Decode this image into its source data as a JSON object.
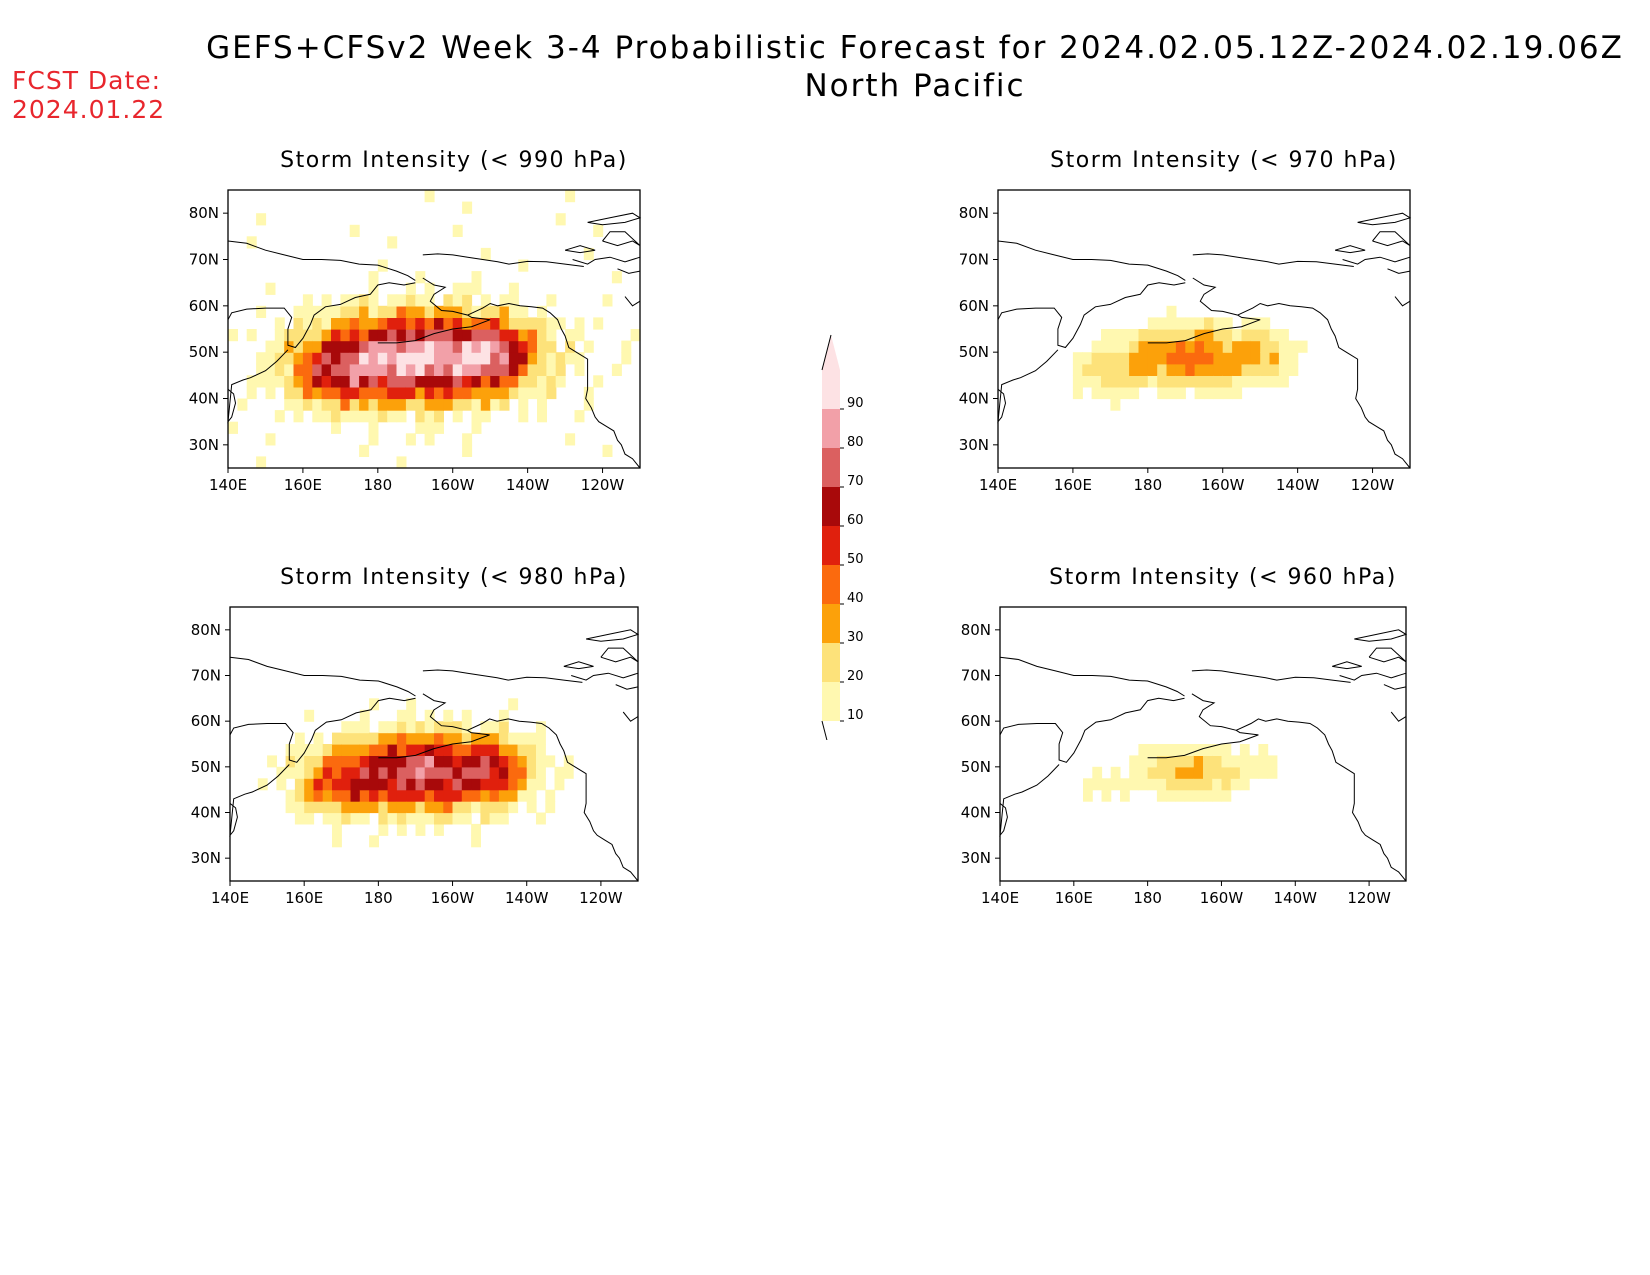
{
  "title": {
    "line1": "GEFS+CFSv2 Week 3-4 Probabilistic Forecast for 2024.02.05.12Z-2024.02.19.06Z",
    "line2": "North Pacific"
  },
  "fcst": {
    "label": "FCST Date:",
    "date": "2024.01.22"
  },
  "axes": {
    "lon_ticks": [
      "140E",
      "160E",
      "180",
      "160W",
      "140W",
      "120W"
    ],
    "lat_ticks": [
      "80N",
      "70N",
      "60N",
      "50N",
      "40N",
      "30N"
    ]
  },
  "panels": [
    {
      "id": "p990",
      "title": "Storm Intensity (< 990 hPa)",
      "peak": 95,
      "spread": 1.0
    },
    {
      "id": "p970",
      "title": "Storm Intensity (< 970 hPa)",
      "peak": 45,
      "spread": 0.75
    },
    {
      "id": "p980",
      "title": "Storm Intensity (< 980 hPa)",
      "peak": 78,
      "spread": 0.9
    },
    {
      "id": "p960",
      "title": "Storm Intensity (< 960 hPa)",
      "peak": 32,
      "spread": 0.6
    }
  ],
  "colorbar": {
    "levels": [
      "10",
      "20",
      "30",
      "40",
      "50",
      "60",
      "70",
      "80",
      "90"
    ],
    "colors": [
      "#fff8b0",
      "#fde27a",
      "#fca10a",
      "#fb6a0e",
      "#e0200d",
      "#a8090a",
      "#db6060",
      "#f2a0a8",
      "#fde2e4"
    ]
  }
}
